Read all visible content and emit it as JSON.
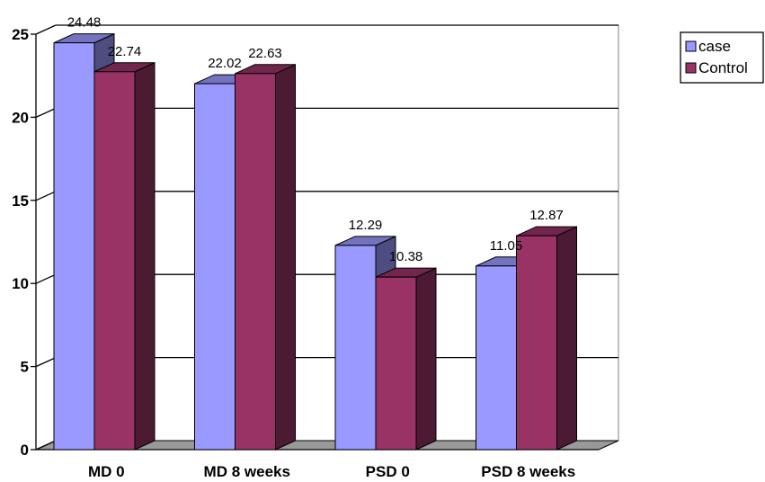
{
  "chart_data": {
    "type": "bar",
    "categories": [
      "MD 0",
      "MD 8 weeks",
      "PSD 0",
      "PSD 8 weeks"
    ],
    "series": [
      {
        "name": "case",
        "values": [
          24.48,
          22.02,
          12.29,
          11.05
        ],
        "color": "#9999FF"
      },
      {
        "name": "Control",
        "values": [
          22.74,
          22.63,
          10.38,
          12.87
        ],
        "color": "#993366"
      }
    ],
    "yticks": [
      0,
      5,
      10,
      15,
      20,
      25
    ],
    "ylim": [
      0,
      25
    ],
    "grid": true,
    "legend_position": "top-right",
    "style": "3d-clustered-column"
  }
}
